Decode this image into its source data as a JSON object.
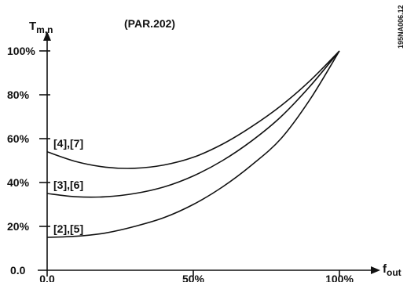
{
  "chart_data": {
    "type": "line",
    "title": "(PAR.202)",
    "ylabel_main": "T",
    "ylabel_sub": "m,n",
    "xlabel_main": "f",
    "xlabel_sub": "out",
    "figure_code": "195NA006.12",
    "xlim": [
      0,
      100
    ],
    "ylim": [
      0,
      100
    ],
    "x_ticks": [
      {
        "value": 0,
        "label": "0.0"
      },
      {
        "value": 50,
        "label": "50%"
      },
      {
        "value": 100,
        "label": "100%"
      }
    ],
    "y_ticks": [
      {
        "value": 0,
        "label": "0.0"
      },
      {
        "value": 20,
        "label": "20%"
      },
      {
        "value": 40,
        "label": "40%"
      },
      {
        "value": 60,
        "label": "60%"
      },
      {
        "value": 80,
        "label": "80%"
      },
      {
        "value": 100,
        "label": "100%"
      }
    ],
    "series": [
      {
        "name": "[4],[7]",
        "x": [
          0,
          10,
          20,
          30,
          40,
          50,
          60,
          70,
          80,
          90,
          100
        ],
        "y": [
          54,
          49.5,
          47,
          46.5,
          48,
          51.5,
          57.5,
          65.5,
          75,
          86.5,
          100
        ]
      },
      {
        "name": "[3],[6]",
        "x": [
          0,
          10,
          20,
          30,
          40,
          50,
          60,
          70,
          80,
          90,
          100
        ],
        "y": [
          35,
          33.5,
          33.5,
          35,
          38,
          43,
          50,
          59,
          70,
          84,
          100
        ]
      },
      {
        "name": "[2],[5]",
        "x": [
          0,
          10,
          20,
          30,
          40,
          50,
          60,
          70,
          80,
          90,
          100
        ],
        "y": [
          15,
          15.5,
          17,
          20,
          24,
          30,
          38,
          48,
          60,
          78,
          100
        ]
      }
    ]
  }
}
